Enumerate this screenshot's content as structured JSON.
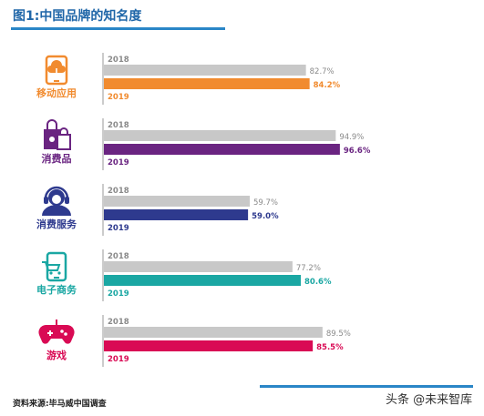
{
  "header": {
    "title": "图1:中国品牌的知名度"
  },
  "footer": {
    "source": "资料来源:毕马威中国调查",
    "watermark": "头条 @未来智库"
  },
  "chart_data": {
    "type": "bar",
    "orientation": "horizontal",
    "title": "图1:中国品牌的知名度",
    "unit": "%",
    "xlim": [
      0,
      100
    ],
    "grid": false,
    "legend": "none",
    "series_names": [
      "2018",
      "2019"
    ],
    "baseline_color": "#c8c8c8",
    "categories": [
      {
        "label": "移动应用",
        "icon": "mobile-download-icon",
        "color": "#f18b2f",
        "values": [
          82.7,
          84.2
        ]
      },
      {
        "label": "消费品",
        "icon": "shopping-bags-icon",
        "color": "#6a2481",
        "values": [
          94.9,
          96.6
        ]
      },
      {
        "label": "消费服务",
        "icon": "customer-service-headset-icon",
        "color": "#2e3a8e",
        "values": [
          59.7,
          59.0
        ]
      },
      {
        "label": "电子商务",
        "icon": "online-shopping-phone-icon",
        "color": "#1aa7a3",
        "values": [
          77.2,
          80.6
        ]
      },
      {
        "label": "游戏",
        "icon": "game-controller-icon",
        "color": "#d90a54",
        "values": [
          89.5,
          85.5
        ]
      }
    ]
  }
}
